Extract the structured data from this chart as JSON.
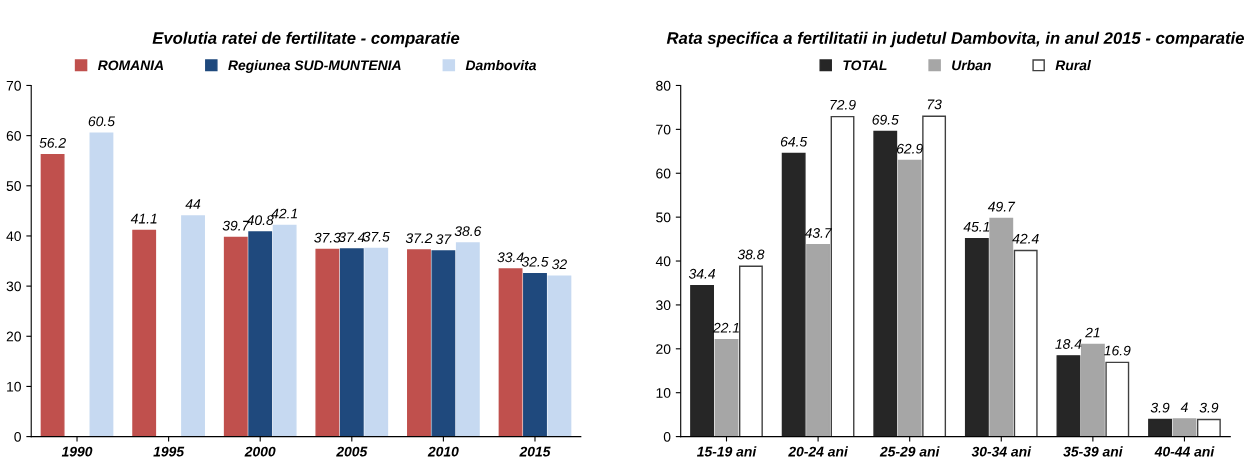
{
  "chart_data": [
    {
      "type": "bar",
      "title": "Evolutia ratei de fertilitate - comparatie",
      "categories": [
        "1990",
        "1995",
        "2000",
        "2005",
        "2010",
        "2015"
      ],
      "series": [
        {
          "name": "ROMANIA",
          "color": "#c0504d",
          "values": [
            56.2,
            41.1,
            39.7,
            37.3,
            37.2,
            33.4
          ]
        },
        {
          "name": "Regiunea SUD-MUNTENIA",
          "color": "#1f497d",
          "values": [
            null,
            null,
            40.8,
            37.4,
            37,
            32.5
          ]
        },
        {
          "name": "Dambovita",
          "color": "#c6d9f1",
          "values": [
            60.5,
            44,
            42.1,
            37.5,
            38.6,
            32
          ]
        }
      ],
      "ylim": [
        0,
        70
      ],
      "yticks": [
        0,
        10,
        20,
        30,
        40,
        50,
        60,
        70
      ],
      "grid": false,
      "legend": "top",
      "data_labels": true
    },
    {
      "type": "bar",
      "title": "Rata specifica a fertilitatii in judetul Dambovita, in anul 2015 - comparatie",
      "categories": [
        "15-19 ani",
        "20-24 ani",
        "25-29 ani",
        "30-34 ani",
        "35-39 ani",
        "40-44 ani"
      ],
      "series": [
        {
          "name": "TOTAL",
          "color": "#262626",
          "values": [
            34.4,
            64.5,
            69.5,
            45.1,
            18.4,
            3.9
          ]
        },
        {
          "name": "Urban",
          "color": "#a6a6a6",
          "values": [
            22.1,
            43.7,
            62.9,
            49.7,
            21,
            4
          ]
        },
        {
          "name": "Rural",
          "color": "#ffffff",
          "values": [
            38.8,
            72.9,
            73,
            42.4,
            16.9,
            3.9
          ]
        }
      ],
      "ylim": [
        0,
        80
      ],
      "yticks": [
        0,
        10,
        20,
        30,
        40,
        50,
        60,
        70,
        80
      ],
      "grid": false,
      "legend": "top",
      "data_labels": true
    }
  ]
}
